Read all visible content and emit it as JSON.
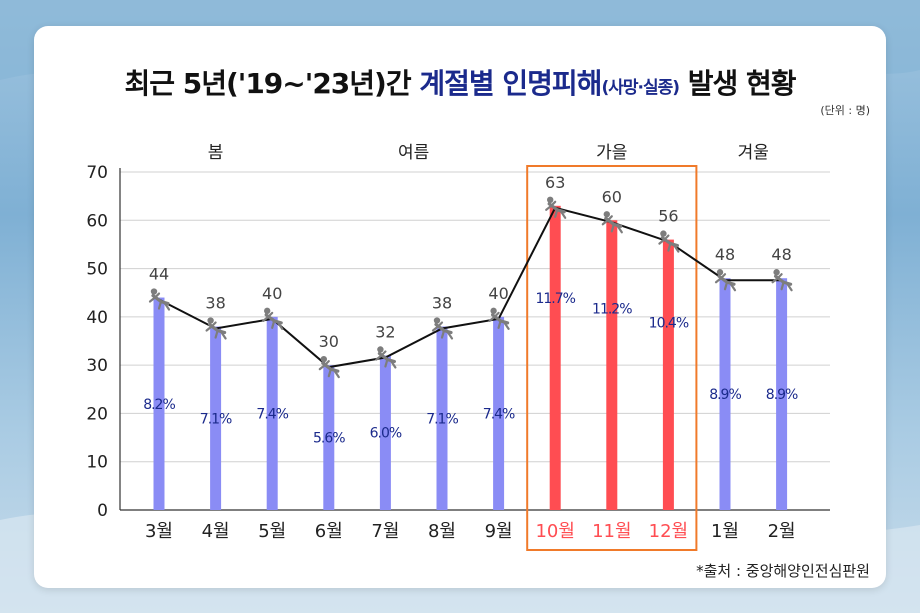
{
  "title": {
    "part1": "최근 5년('19~'23년)간 ",
    "part2": "계절별 인명피해",
    "part3": "(사망·실종)",
    "part4": " 발생 현황"
  },
  "unit": "(단위 : 명)",
  "source": "*출처 : 중앙해양인전심판원",
  "colors": {
    "normal_bar": "#8a8cf5",
    "highlight_bar": "#ff4d52",
    "highlight_box": "#f07a2a",
    "line": "#111111",
    "percent_text": "#1b2a8c"
  },
  "chart_data": {
    "type": "bar",
    "categories": [
      "3월",
      "4월",
      "5월",
      "6월",
      "7월",
      "8월",
      "9월",
      "10월",
      "11월",
      "12월",
      "1월",
      "2월"
    ],
    "values": [
      44,
      38,
      40,
      30,
      32,
      38,
      40,
      63,
      60,
      56,
      48,
      48
    ],
    "percent_labels": [
      "8.2%",
      "7.1%",
      "7.4%",
      "5.6%",
      "6.0%",
      "7.1%",
      "7.4%",
      "11.7%",
      "11.2%",
      "10.4%",
      "8.9%",
      "8.9%"
    ],
    "highlighted": [
      "10월",
      "11월",
      "12월"
    ],
    "seasons": [
      {
        "label": "봄",
        "start": 0,
        "end": 2
      },
      {
        "label": "여름",
        "start": 3,
        "end": 6
      },
      {
        "label": "가을",
        "start": 7,
        "end": 9
      },
      {
        "label": "겨울",
        "start": 10,
        "end": 11
      }
    ],
    "ylim": [
      0,
      70
    ],
    "yticks": [
      0,
      10,
      20,
      30,
      40,
      50,
      60,
      70
    ],
    "grid": true,
    "legend": "none",
    "overlay_line": true,
    "marker_icon": "drowning-person-icon"
  }
}
